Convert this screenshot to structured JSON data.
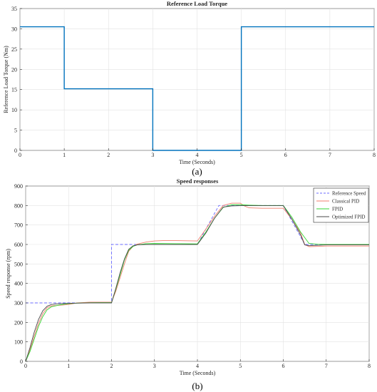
{
  "chart_data": [
    {
      "type": "line",
      "panel_label": "(a)",
      "title": "Reference Load Torque",
      "xlabel": "Time (Seconds)",
      "ylabel": "Reference Load Torque (Nm)",
      "xlim": [
        0,
        8
      ],
      "ylim": [
        0,
        35
      ],
      "xticks": [
        0,
        1,
        2,
        3,
        4,
        5,
        6,
        7,
        8
      ],
      "yticks": [
        0,
        5,
        10,
        15,
        20,
        25,
        30,
        35
      ],
      "grid": true,
      "series": [
        {
          "color": "#0072BD",
          "x": [
            0,
            1,
            1,
            3,
            3,
            5,
            5,
            8
          ],
          "y": [
            30.5,
            30.5,
            15.2,
            15.2,
            0,
            0,
            30.5,
            30.5
          ]
        }
      ]
    },
    {
      "type": "line",
      "panel_label": "(b)",
      "title": "Speed responses",
      "xlabel": "Time (Seconds)",
      "ylabel": "Speed response (rpm)",
      "xlim": [
        0,
        8
      ],
      "ylim": [
        0,
        900
      ],
      "xticks": [
        0,
        1,
        2,
        3,
        4,
        5,
        6,
        7,
        8
      ],
      "yticks": [
        0,
        100,
        200,
        300,
        400,
        500,
        600,
        700,
        800,
        900
      ],
      "grid": true,
      "legend_position": "top-right",
      "series": [
        {
          "name": "Reference Speed",
          "color": "#6b6bff",
          "dash": true,
          "x": [
            0,
            2,
            2,
            4,
            4.5,
            6,
            6.5,
            8
          ],
          "y": [
            300,
            300,
            600,
            600,
            800,
            800,
            600,
            600
          ]
        },
        {
          "name": "Classical PID",
          "color": "#f07c6c",
          "dash": false,
          "x": [
            0,
            0.1,
            0.2,
            0.3,
            0.4,
            0.5,
            0.6,
            0.8,
            1.0,
            1.2,
            1.5,
            2.0,
            2.1,
            2.2,
            2.3,
            2.4,
            2.5,
            2.6,
            2.8,
            3.0,
            3.2,
            3.5,
            4.0,
            4.2,
            4.4,
            4.6,
            4.8,
            5.0,
            5.1,
            5.2,
            5.5,
            6.0,
            6.2,
            6.4,
            6.5,
            6.6,
            6.8,
            7.0,
            7.5,
            8.0
          ],
          "y": [
            0,
            60,
            130,
            195,
            245,
            275,
            285,
            288,
            292,
            300,
            304,
            304,
            360,
            430,
            500,
            565,
            590,
            602,
            612,
            618,
            620,
            620,
            618,
            680,
            745,
            800,
            812,
            812,
            797,
            788,
            786,
            786,
            730,
            660,
            600,
            589,
            590,
            592,
            592,
            592
          ]
        },
        {
          "name": "FPID",
          "color": "#33d633",
          "dash": false,
          "x": [
            0,
            0.1,
            0.2,
            0.3,
            0.4,
            0.5,
            0.6,
            0.8,
            1.0,
            1.2,
            1.5,
            2.0,
            2.1,
            2.2,
            2.3,
            2.4,
            2.5,
            2.6,
            2.8,
            3.0,
            3.5,
            4.0,
            4.2,
            4.4,
            4.6,
            4.8,
            5.0,
            5.2,
            5.5,
            6.0,
            6.2,
            6.4,
            6.6,
            6.8,
            7.0,
            7.5,
            8.0
          ],
          "y": [
            0,
            50,
            115,
            180,
            230,
            265,
            280,
            290,
            296,
            299,
            301,
            302,
            370,
            445,
            520,
            570,
            590,
            598,
            604,
            605,
            604,
            603,
            665,
            735,
            790,
            804,
            804,
            802,
            800,
            800,
            740,
            665,
            605,
            601,
            600,
            600,
            600
          ]
        },
        {
          "name": "Optimized FPID",
          "color": "#4a4a4a",
          "dash": false,
          "x": [
            0,
            0.1,
            0.2,
            0.3,
            0.4,
            0.5,
            0.6,
            0.8,
            1.0,
            1.2,
            1.5,
            2.0,
            2.1,
            2.2,
            2.3,
            2.4,
            2.5,
            2.6,
            2.8,
            3.0,
            3.5,
            4.0,
            4.2,
            4.4,
            4.6,
            4.8,
            5.0,
            5.2,
            5.5,
            6.0,
            6.2,
            6.4,
            6.5,
            6.6,
            7.0,
            7.5,
            8.0
          ],
          "y": [
            0,
            70,
            150,
            215,
            260,
            283,
            292,
            296,
            298,
            299,
            300,
            300,
            375,
            455,
            525,
            575,
            593,
            598,
            600,
            600,
            600,
            600,
            660,
            735,
            792,
            798,
            799,
            799,
            799,
            799,
            730,
            650,
            598,
            594,
            598,
            598,
            598
          ]
        }
      ]
    }
  ]
}
